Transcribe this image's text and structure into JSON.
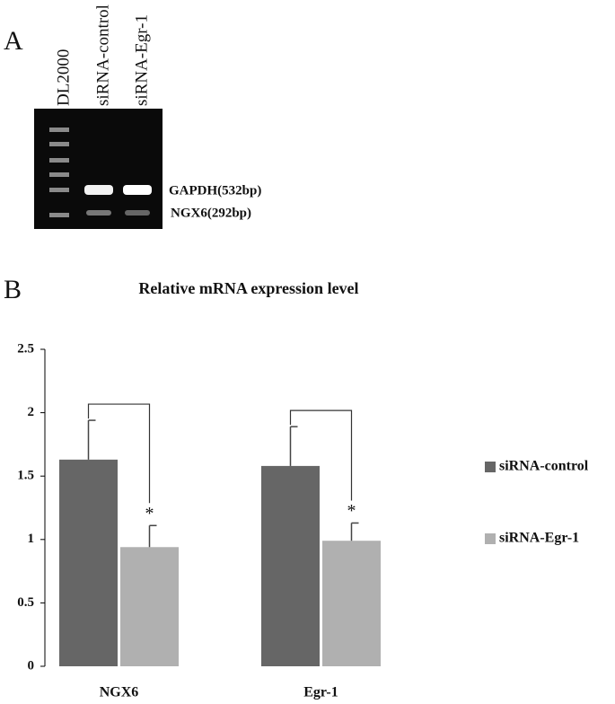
{
  "panel_a": {
    "label": "A",
    "lanes": [
      "DL2000",
      "siRNA-control",
      "siRNA-Egr-1"
    ],
    "bands": [
      "GAPDH(532bp)",
      "NGX6(292bp)"
    ]
  },
  "chart_data": {
    "type": "bar",
    "panel_label": "B",
    "title": "Relative mRNA expression level",
    "categories": [
      "NGX6",
      "Egr-1"
    ],
    "series": [
      {
        "name": "siRNA-control",
        "color": "#666666",
        "values": [
          1.63,
          1.58
        ],
        "errors": [
          0.31,
          0.31
        ]
      },
      {
        "name": "siRNA-Egr-1",
        "color": "#b0b0b0",
        "values": [
          0.94,
          0.99
        ],
        "errors": [
          0.17,
          0.14
        ]
      }
    ],
    "annotations": [
      "*",
      "*"
    ],
    "ylim": [
      0,
      2.5
    ],
    "yticks": [
      0,
      0.5,
      1,
      1.5,
      2,
      2.5
    ],
    "grid": false,
    "legend": "right"
  }
}
